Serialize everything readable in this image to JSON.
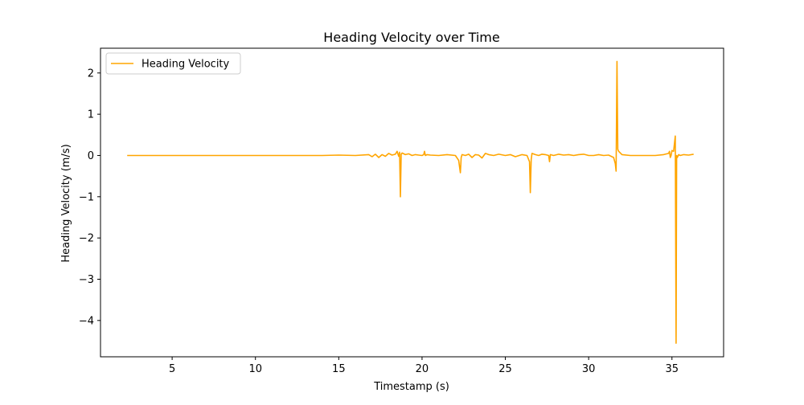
{
  "chart_data": {
    "type": "line",
    "title": "Heading Velocity over Time",
    "xlabel": "Timestamp (s)",
    "ylabel": "Heading Velocity (m/s)",
    "xlim": [
      0.7,
      38.1
    ],
    "ylim": [
      -4.88,
      2.6
    ],
    "x_ticks": [
      5,
      10,
      15,
      20,
      25,
      30,
      35
    ],
    "y_ticks": [
      -4,
      -3,
      -2,
      -1,
      0,
      1,
      2
    ],
    "grid": false,
    "legend_position": "upper left",
    "series": [
      {
        "name": "Heading Velocity",
        "color": "#ffa500",
        "x": [
          2.3,
          4.0,
          6.0,
          8.0,
          10.0,
          12.0,
          13.0,
          14.0,
          15.0,
          16.0,
          16.8,
          17.0,
          17.2,
          17.4,
          17.6,
          17.8,
          18.0,
          18.2,
          18.4,
          18.5,
          18.6,
          18.65,
          18.7,
          18.75,
          18.8,
          19.0,
          19.2,
          19.4,
          19.6,
          19.8,
          20.0,
          20.1,
          20.15,
          20.2,
          20.3,
          20.5,
          21.0,
          21.5,
          22.0,
          22.2,
          22.3,
          22.35,
          22.4,
          22.6,
          22.8,
          23.0,
          23.2,
          23.4,
          23.6,
          23.8,
          24.0,
          24.3,
          24.6,
          25.0,
          25.3,
          25.6,
          26.0,
          26.3,
          26.45,
          26.5,
          26.55,
          26.6,
          26.8,
          27.0,
          27.2,
          27.4,
          27.6,
          27.65,
          27.7,
          27.9,
          28.2,
          28.5,
          28.8,
          29.1,
          29.4,
          29.7,
          30.0,
          30.3,
          30.6,
          30.9,
          31.2,
          31.5,
          31.6,
          31.65,
          31.7,
          31.75,
          31.8,
          32.0,
          32.5,
          33.0,
          33.5,
          34.0,
          34.5,
          34.8,
          34.85,
          34.9,
          34.95,
          35.0,
          35.1,
          35.2,
          35.25,
          35.28,
          35.32,
          35.4,
          35.5,
          35.7,
          36.0,
          36.3
        ],
        "y": [
          0.0,
          0.0,
          0.0,
          0.0,
          0.0,
          0.0,
          0.0,
          0.0,
          0.01,
          0.0,
          0.02,
          -0.03,
          0.03,
          -0.05,
          0.02,
          -0.02,
          0.05,
          0.01,
          0.03,
          0.1,
          -0.02,
          0.08,
          -1.0,
          0.03,
          0.06,
          0.02,
          0.04,
          0.0,
          0.02,
          0.01,
          0.0,
          0.02,
          0.1,
          0.0,
          0.02,
          0.01,
          0.0,
          0.02,
          0.0,
          -0.12,
          -0.42,
          -0.05,
          0.02,
          0.0,
          0.03,
          -0.05,
          0.02,
          0.01,
          -0.06,
          0.05,
          0.02,
          0.0,
          0.03,
          0.0,
          0.02,
          -0.03,
          0.02,
          0.0,
          -0.15,
          -0.9,
          -0.1,
          0.05,
          0.02,
          0.0,
          0.03,
          0.02,
          0.0,
          -0.15,
          0.02,
          0.0,
          0.03,
          0.01,
          0.02,
          0.0,
          0.02,
          0.03,
          0.0,
          0.0,
          0.02,
          0.0,
          0.01,
          -0.05,
          -0.2,
          -0.38,
          2.28,
          0.15,
          0.1,
          0.02,
          0.0,
          0.0,
          0.0,
          0.0,
          0.02,
          0.05,
          0.1,
          -0.05,
          0.0,
          0.12,
          0.1,
          0.47,
          -4.55,
          0.0,
          -0.05,
          0.02,
          0.0,
          0.02,
          0.01,
          0.03
        ]
      }
    ]
  }
}
